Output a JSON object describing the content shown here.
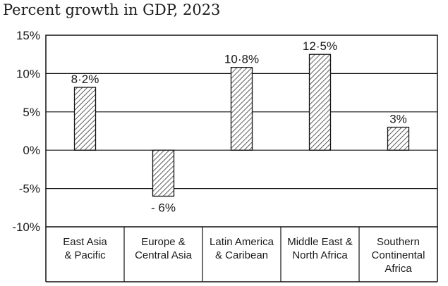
{
  "chart_data": {
    "type": "bar",
    "title": "Percent growth in GDP, 2023",
    "xlabel": "",
    "ylabel": "",
    "ylim": [
      -10,
      15
    ],
    "yticks": [
      "15%",
      "10%",
      "5%",
      "0%",
      "-5%",
      "-10%"
    ],
    "ytick_values": [
      15,
      10,
      5,
      0,
      -5,
      -10
    ],
    "grid": true,
    "bar_fill": "diagonal hatch",
    "colors": {
      "line": "#111111",
      "hatch": "#333333",
      "background": "#ffffff"
    },
    "categories": [
      [
        "East Asia",
        "& Pacific"
      ],
      [
        "Europe &",
        "Central Asia"
      ],
      [
        "Latin America",
        "& Caribean"
      ],
      [
        "Middle East &",
        "North Africa"
      ],
      [
        "Southern",
        "Continental",
        "Africa"
      ]
    ],
    "values": [
      8.2,
      -6,
      10.8,
      12.5,
      3
    ],
    "data_labels": [
      "8·2%",
      "- 6%",
      "10·8%",
      "12·5%",
      "3%"
    ]
  }
}
